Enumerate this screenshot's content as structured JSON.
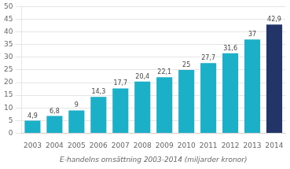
{
  "chart_data": {
    "type": "bar",
    "xlabel": "E-handelns omsättning 2003-2014 (miljarder kronor)",
    "categories": [
      "2003",
      "2004",
      "2005",
      "2006",
      "2007",
      "2008",
      "2009",
      "2010",
      "2011",
      "2012",
      "2013",
      "2014"
    ],
    "values": [
      4.9,
      6.8,
      9,
      14.3,
      17.7,
      20.4,
      22.1,
      25,
      27.7,
      31.6,
      37,
      42.9
    ],
    "value_labels": [
      "4,9",
      "6,8",
      "9",
      "14,3",
      "17,7",
      "20,4",
      "22,1",
      "25",
      "27,7",
      "31,6",
      "37",
      "42,9"
    ],
    "data_labels": true,
    "colors": [
      "#1cafc8",
      "#1cafc8",
      "#1cafc8",
      "#1cafc8",
      "#1cafc8",
      "#1cafc8",
      "#1cafc8",
      "#1cafc8",
      "#1cafc8",
      "#1cafc8",
      "#1cafc8",
      "#233568"
    ],
    "ylim": [
      0,
      50
    ],
    "yticks": [
      0,
      5,
      10,
      15,
      20,
      25,
      30,
      35,
      40,
      45,
      50
    ],
    "grid": true
  }
}
